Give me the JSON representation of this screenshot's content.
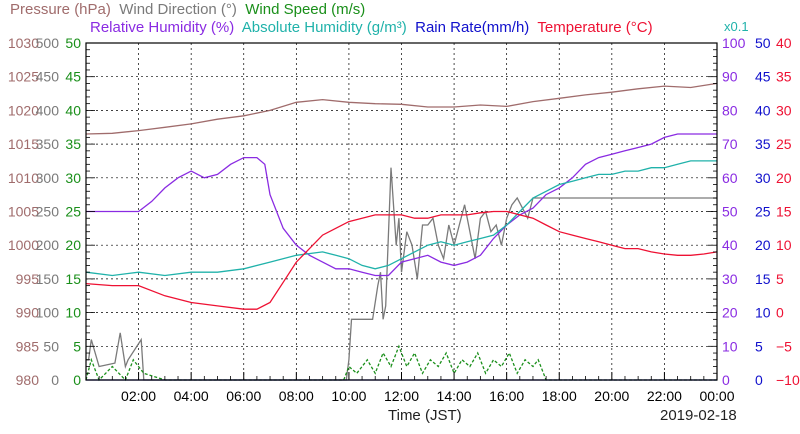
{
  "header": {
    "row1": [
      {
        "label": "Pressure (hPa)",
        "color": "#a06c6c"
      },
      {
        "label": "Wind Direction (°)",
        "color": "#7a7a7a"
      },
      {
        "label": "Wind Speed (m/s)",
        "color": "#1a8f1a"
      }
    ],
    "row2": [
      {
        "label": "Relative Humidity (%)",
        "color": "#8a2be2"
      },
      {
        "label": "Absolute Humidity (g/m³)",
        "color": "#20b2aa"
      },
      {
        "label": "Rain Rate(mm/h)",
        "color": "#1010cc"
      },
      {
        "label": "Temperature (°C)",
        "color": "#ee1133"
      }
    ],
    "ah_scale_note": "x0.1"
  },
  "footer": {
    "xlabel": "Time (JST)",
    "date": "2019-02-18"
  },
  "chart_data": {
    "type": "line",
    "x_unit": "hours since 00:00 JST",
    "xlim": [
      0,
      24
    ],
    "x_ticks": [
      2,
      4,
      6,
      8,
      10,
      12,
      14,
      16,
      18,
      20,
      22,
      24
    ],
    "x_tick_labels": [
      "02:00",
      "04:00",
      "06:00",
      "08:00",
      "10:00",
      "12:00",
      "14:00",
      "16:00",
      "18:00",
      "20:00",
      "22:00",
      "00:00"
    ],
    "grid": true,
    "axes": {
      "pressure": {
        "range": [
          980,
          1030
        ],
        "ticks": [
          980,
          985,
          990,
          995,
          1000,
          1005,
          1010,
          1015,
          1020,
          1025,
          1030
        ],
        "color": "#a06c6c"
      },
      "wind_direction": {
        "range": [
          0,
          500
        ],
        "ticks": [
          0,
          50,
          100,
          150,
          200,
          250,
          300,
          350,
          400,
          450,
          500
        ],
        "color": "#7a7a7a"
      },
      "wind_speed": {
        "range": [
          0,
          50
        ],
        "ticks": [
          0,
          5,
          10,
          15,
          20,
          25,
          30,
          35,
          40,
          45,
          50
        ],
        "color": "#1a8f1a"
      },
      "relative_humidity": {
        "range": [
          0,
          100
        ],
        "ticks": [
          0,
          10,
          20,
          30,
          40,
          50,
          60,
          70,
          80,
          90,
          100
        ],
        "color": "#8a2be2"
      },
      "rain_rate": {
        "range": [
          0,
          50
        ],
        "ticks": [
          0,
          5,
          10,
          15,
          20,
          25,
          30,
          35,
          40,
          45,
          50
        ],
        "color": "#1010cc"
      },
      "temperature": {
        "range": [
          -10,
          40
        ],
        "ticks": [
          -10,
          -5,
          0,
          5,
          10,
          15,
          20,
          25,
          30,
          35,
          40
        ],
        "tick_labels": [
          "−10",
          "−5",
          "0",
          "5",
          "10",
          "15",
          "20",
          "25",
          "30",
          "35",
          "40"
        ],
        "color": "#ee1133"
      }
    },
    "series": [
      {
        "name": "Pressure (hPa)",
        "axis": "pressure",
        "color": "#a06c6c",
        "x": [
          0,
          1,
          2,
          3,
          4,
          5,
          6,
          7,
          8,
          9,
          10,
          11,
          12,
          13,
          14,
          15,
          16,
          17,
          18,
          19,
          20,
          21,
          22,
          23,
          24
        ],
        "y": [
          1016.5,
          1016.6,
          1017.0,
          1017.5,
          1018.0,
          1018.7,
          1019.2,
          1020.0,
          1021.2,
          1021.6,
          1021.2,
          1021.0,
          1020.9,
          1020.5,
          1020.5,
          1020.8,
          1020.6,
          1021.3,
          1021.8,
          1022.3,
          1022.7,
          1023.2,
          1023.6,
          1023.4,
          1024.0
        ]
      },
      {
        "name": "Wind Direction (°)",
        "axis": "wind_direction",
        "color": "#7a7a7a",
        "x": [
          0,
          0.1,
          0.2,
          0.5,
          1.1,
          1.3,
          1.5,
          1.6,
          2.1,
          2.2,
          9.9,
          10.0,
          10.1,
          10.2,
          10.6,
          10.9,
          11.1,
          11.2,
          11.3,
          11.4,
          11.6,
          11.8,
          11.9,
          12.0,
          12.2,
          12.4,
          12.6,
          12.8,
          13.0,
          13.2,
          13.4,
          13.6,
          13.8,
          14.0,
          14.2,
          14.4,
          14.6,
          14.8,
          15.0,
          15.2,
          15.4,
          15.6,
          15.8,
          16.0,
          16.2,
          16.4,
          16.8,
          17.0,
          17.3,
          24.0
        ],
        "y": [
          30,
          30,
          60,
          20,
          25,
          70,
          20,
          30,
          60,
          0,
          0,
          30,
          90,
          90,
          90,
          90,
          140,
          160,
          90,
          110,
          315,
          200,
          240,
          160,
          220,
          200,
          150,
          230,
          230,
          240,
          200,
          180,
          230,
          200,
          230,
          260,
          220,
          180,
          240,
          250,
          220,
          230,
          200,
          240,
          260,
          270,
          240,
          270,
          270,
          270
        ]
      },
      {
        "name": "Wind Speed (m/s)",
        "axis": "wind_speed",
        "color": "#1a8f1a",
        "x": [
          0,
          0.2,
          0.5,
          1.0,
          1.5,
          1.8,
          2.2,
          3,
          9.8,
          10.0,
          10.3,
          10.7,
          11.0,
          11.3,
          11.6,
          11.9,
          12.2,
          12.5,
          12.8,
          13.1,
          13.4,
          13.7,
          14.0,
          14.3,
          14.6,
          14.9,
          15.2,
          15.5,
          15.8,
          16.1,
          16.4,
          16.7,
          17.0,
          17.2,
          17.5,
          18,
          24
        ],
        "y": [
          0,
          3,
          0,
          2,
          0,
          3,
          1,
          0,
          0,
          2,
          1,
          3,
          1,
          4,
          2,
          5,
          2,
          4,
          1,
          3,
          2,
          4,
          1,
          3,
          2,
          4,
          1,
          3,
          2,
          4,
          1,
          3,
          2,
          3,
          0,
          0,
          0
        ]
      },
      {
        "name": "Relative Humidity (%)",
        "axis": "relative_humidity",
        "color": "#8a2be2",
        "x": [
          0,
          2,
          2.5,
          3,
          3.5,
          4,
          4.5,
          5,
          5.5,
          6,
          6.5,
          6.8,
          7,
          7.5,
          8,
          8.5,
          9,
          9.5,
          10,
          10.5,
          11,
          11.5,
          12,
          12.5,
          13,
          13.5,
          14,
          14.5,
          15,
          15.5,
          16,
          16.5,
          17,
          17.5,
          18,
          18.5,
          19,
          19.5,
          20,
          20.5,
          21,
          21.5,
          22,
          22.5,
          23,
          23.5,
          24
        ],
        "y": [
          50,
          50,
          53,
          57,
          60,
          62,
          60,
          61,
          64,
          66,
          66,
          64,
          55,
          45,
          40,
          37,
          35,
          33,
          33,
          32,
          31,
          31,
          35,
          36,
          37,
          35,
          34,
          35,
          37,
          42,
          46,
          49,
          51,
          55,
          57,
          60,
          64,
          66,
          67,
          68,
          69,
          70,
          72,
          73,
          73,
          73,
          73
        ]
      },
      {
        "name": "Absolute Humidity (g/m³)",
        "axis": "wind_speed",
        "color": "#20b2aa",
        "x": [
          0,
          1,
          2,
          3,
          4,
          5,
          6,
          7,
          8,
          9,
          9.5,
          10,
          10.5,
          11,
          11.5,
          12,
          12.5,
          13,
          13.5,
          14,
          14.5,
          15,
          15.5,
          16,
          16.5,
          17,
          17.5,
          18,
          18.5,
          19,
          19.5,
          20,
          20.5,
          21,
          21.5,
          22,
          22.5,
          23,
          23.5,
          24
        ],
        "y": [
          16,
          15.5,
          16,
          15.5,
          16,
          16,
          16.5,
          17.5,
          18.5,
          19,
          18.5,
          18,
          17,
          16.5,
          17,
          18,
          19,
          20,
          20.5,
          20,
          20.5,
          21,
          21.5,
          23,
          25,
          27,
          28,
          29,
          29.5,
          30,
          30.5,
          30.5,
          31,
          31,
          31.5,
          31.5,
          32,
          32.5,
          32.5,
          32.5
        ]
      },
      {
        "name": "Rain Rate(mm/h)",
        "axis": "rain_rate",
        "color": "#1010cc",
        "x": [
          0,
          24
        ],
        "y": [
          0,
          0
        ]
      },
      {
        "name": "Temperature (°C)",
        "axis": "temperature",
        "color": "#ee1133",
        "x": [
          0,
          1,
          2,
          3,
          4,
          5,
          6,
          6.5,
          7,
          7.5,
          8,
          8.5,
          9,
          9.5,
          10,
          10.5,
          11,
          11.5,
          12,
          12.5,
          13,
          13.5,
          14,
          14.5,
          15,
          15.5,
          16,
          16.5,
          17,
          17.5,
          18,
          18.5,
          19,
          19.5,
          20,
          20.5,
          21,
          21.5,
          22,
          22.5,
          23,
          23.5,
          24
        ],
        "y": [
          4.3,
          4.0,
          4.0,
          2.5,
          1.5,
          1.0,
          0.5,
          0.5,
          1.5,
          4.5,
          7.5,
          9.5,
          11.5,
          12.5,
          13.5,
          14.0,
          14.5,
          14.5,
          14.5,
          14.0,
          14.0,
          14.5,
          14.5,
          14.5,
          14.8,
          15.0,
          15.0,
          14.5,
          14.0,
          13.0,
          12.0,
          11.5,
          11.0,
          10.5,
          10.0,
          9.5,
          9.5,
          9.0,
          8.7,
          8.5,
          8.5,
          8.7,
          9.0
        ]
      }
    ]
  }
}
